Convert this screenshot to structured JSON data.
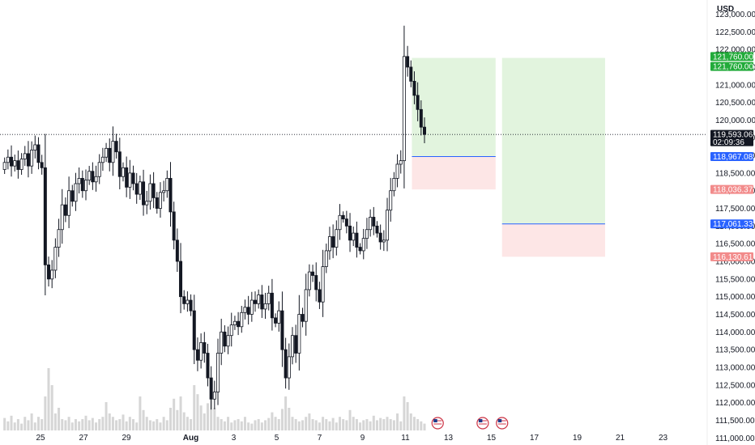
{
  "chart_data": {
    "type": "candlestick",
    "currency": "USD",
    "ylim": [
      110800,
      123400
    ],
    "y_ticks": [
      "123,000.00",
      "122,500.00",
      "122,000.00",
      "121,500.00",
      "121,000.00",
      "120,500.00",
      "120,000.00",
      "119,500.00",
      "119,000.00",
      "118,500.00",
      "118,000.00",
      "117,500.00",
      "117,000.00",
      "116,500.00",
      "116,000.00",
      "115,500.00",
      "115,000.00",
      "114,500.00",
      "114,000.00",
      "113,500.00",
      "113,000.00",
      "112,500.00",
      "112,000.00",
      "111,500.00",
      "111,000.00"
    ],
    "x_ticks": [
      {
        "label": "25",
        "day": 25,
        "bold": false
      },
      {
        "label": "27",
        "day": 27,
        "bold": false
      },
      {
        "label": "29",
        "day": 29,
        "bold": false
      },
      {
        "label": "Aug",
        "day": 32,
        "bold": true
      },
      {
        "label": "3",
        "day": 34,
        "bold": false
      },
      {
        "label": "5",
        "day": 36,
        "bold": false
      },
      {
        "label": "7",
        "day": 38,
        "bold": false
      },
      {
        "label": "9",
        "day": 40,
        "bold": false
      },
      {
        "label": "11",
        "day": 42,
        "bold": false
      },
      {
        "label": "13",
        "day": 44,
        "bold": false
      },
      {
        "label": "15",
        "day": 46,
        "bold": false
      },
      {
        "label": "17",
        "day": 48,
        "bold": false
      },
      {
        "label": "19",
        "day": 50,
        "bold": false
      },
      {
        "label": "21",
        "day": 52,
        "bold": false
      },
      {
        "label": "23",
        "day": 54,
        "bold": false
      }
    ],
    "candle_closes": [
      118800,
      118950,
      118700,
      118850,
      118600,
      118900,
      119050,
      118700,
      119150,
      119300,
      118800,
      118650,
      115900,
      115500,
      115750,
      116400,
      116900,
      117600,
      117300,
      118000,
      117700,
      118200,
      118350,
      118000,
      118300,
      118550,
      118250,
      118400,
      118800,
      118950,
      119200,
      118800,
      119400,
      119100,
      118400,
      118650,
      118100,
      118500,
      118200,
      117900,
      118250,
      117600,
      117700,
      118200,
      117800,
      117500,
      117950,
      118000,
      118350,
      117400,
      116600,
      116000,
      115000,
      114800,
      114900,
      114600,
      113500,
      113200,
      113700,
      113400,
      112700,
      112100,
      112300,
      113400,
      114000,
      113600,
      113900,
      114200,
      114300,
      114150,
      114550,
      114700,
      114500,
      114900,
      114800,
      115050,
      114650,
      114800,
      115100,
      114400,
      114250,
      114600,
      113500,
      112700,
      113300,
      113900,
      113400,
      114500,
      114300,
      115200,
      115700,
      115600,
      115200,
      114850,
      115850,
      116300,
      116700,
      116400,
      116900,
      117300,
      117200,
      117000,
      116600,
      116800,
      116400,
      116300,
      116650,
      116900,
      117250,
      117000,
      116800,
      116550,
      116600,
      117450,
      118000,
      118350,
      118750,
      118850,
      121800,
      121500,
      121100,
      120700,
      120300,
      119800,
      119593
    ],
    "volumes": [
      0.11,
      0.08,
      0.13,
      0.07,
      0.1,
      0.06,
      0.12,
      0.09,
      0.15,
      0.07,
      0.12,
      0.1,
      0.3,
      0.55,
      0.4,
      0.15,
      0.2,
      0.1,
      0.09,
      0.12,
      0.07,
      0.1,
      0.08,
      0.1,
      0.13,
      0.09,
      0.11,
      0.07,
      0.1,
      0.12,
      0.25,
      0.15,
      0.12,
      0.09,
      0.1,
      0.14,
      0.08,
      0.12,
      0.1,
      0.07,
      0.3,
      0.18,
      0.12,
      0.09,
      0.08,
      0.1,
      0.07,
      0.12,
      0.09,
      0.2,
      0.28,
      0.18,
      0.3,
      0.16,
      0.12,
      0.1,
      0.4,
      0.32,
      0.22,
      0.15,
      0.24,
      0.3,
      0.2,
      0.12,
      0.1,
      0.08,
      0.12,
      0.07,
      0.09,
      0.1,
      0.08,
      0.12,
      0.07,
      0.06,
      0.09,
      0.1,
      0.07,
      0.09,
      0.11,
      0.16,
      0.12,
      0.1,
      0.19,
      0.3,
      0.2,
      0.12,
      0.1,
      0.08,
      0.09,
      0.12,
      0.15,
      0.1,
      0.09,
      0.07,
      0.12,
      0.1,
      0.08,
      0.11,
      0.07,
      0.12,
      0.1,
      0.09,
      0.18,
      0.12,
      0.1,
      0.07,
      0.09,
      0.1,
      0.08,
      0.13,
      0.09,
      0.11,
      0.1,
      0.12,
      0.1,
      0.09,
      0.15,
      0.08,
      0.3,
      0.25,
      0.15,
      0.12,
      0.1,
      0.08,
      0.06
    ],
    "last_price": {
      "label": "119,593.06",
      "countdown": "02:09:36",
      "value": 119593.06
    },
    "positions": [
      {
        "name": "long-position-1",
        "day_start": 42.3,
        "day_end": 46.2,
        "target": 121760,
        "entry": 118967.08,
        "stop": 118036.37
      },
      {
        "name": "long-position-2",
        "day_start": 46.5,
        "day_end": 51.3,
        "target": 121760,
        "entry": 117061.33,
        "stop": 116130.61
      }
    ],
    "price_tags": [
      {
        "label": "121,760.00",
        "value": 121800,
        "color": "#22ab3a",
        "dark": false
      },
      {
        "label": "121,760.00",
        "value": 121520,
        "color": "#22ab3a",
        "dark": false
      },
      {
        "label": "118,967.08",
        "value": 118967.08,
        "color": "#2962ff",
        "dark": false
      },
      {
        "label": "118,036.37",
        "value": 118036.37,
        "color": "#f28b8b",
        "dark": false
      },
      {
        "label": "117,061.33",
        "value": 117061.33,
        "color": "#2962ff",
        "dark": false
      },
      {
        "label": "116,130.61",
        "value": 116130.61,
        "color": "#f28b8b",
        "dark": false
      }
    ],
    "event_days": [
      43.5,
      45.6,
      46.5
    ],
    "colors": {
      "candle": "#131722",
      "volume": "#d6d6d6",
      "target_zone": "#e2f4de",
      "stop_zone": "#fde6e6",
      "entry_line": "#2962ff"
    }
  }
}
